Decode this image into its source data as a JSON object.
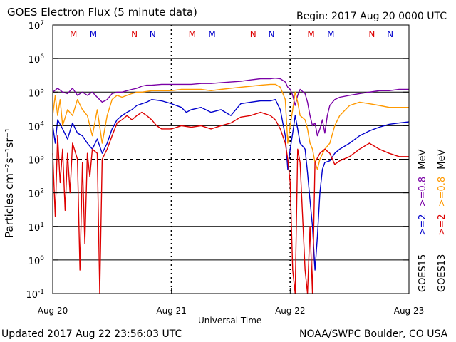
{
  "header": {
    "title": "GOES Electron Flux (5 minute data)",
    "begin": "Begin: 2017 Aug 20 0000 UTC"
  },
  "footer": {
    "updated": "Updated 2017 Aug 22 23:56:03 UTC",
    "credit": "NOAA/SWPC Boulder, CO USA"
  },
  "chart_data": {
    "type": "line",
    "title": "GOES Electron Flux (5 minute data)",
    "xlabel": "Universal Time",
    "ylabel": "Particles cm⁻²s⁻¹sr⁻¹",
    "y_scale": "log",
    "ylim": [
      0.1,
      10000000
    ],
    "xlim": [
      0,
      72
    ],
    "x_unit": "hours since 2017 Aug 20 0000 UTC",
    "x_ticks": [
      {
        "x": 0,
        "label": "Aug 20"
      },
      {
        "x": 24,
        "label": "Aug 21"
      },
      {
        "x": 48,
        "label": "Aug 22"
      },
      {
        "x": 72,
        "label": "Aug 23"
      }
    ],
    "y_ticks": [
      {
        "exp": -1,
        "label": "10-1"
      },
      {
        "exp": 0,
        "label": "100"
      },
      {
        "exp": 1,
        "label": "101"
      },
      {
        "exp": 2,
        "label": "102"
      },
      {
        "exp": 3,
        "label": "103"
      },
      {
        "exp": 4,
        "label": "104"
      },
      {
        "exp": 5,
        "label": "105"
      },
      {
        "exp": 6,
        "label": "106"
      },
      {
        "exp": 7,
        "label": "107"
      }
    ],
    "threshold_line": {
      "y": 1000,
      "style": "dashed"
    },
    "grid": true,
    "markers": [
      {
        "x": 4.2,
        "label": "M",
        "color": "#dd0000"
      },
      {
        "x": 8.2,
        "label": "M",
        "color": "#0000cc"
      },
      {
        "x": 16.5,
        "label": "N",
        "color": "#dd0000"
      },
      {
        "x": 20.2,
        "label": "N",
        "color": "#0000cc"
      },
      {
        "x": 28.2,
        "label": "M",
        "color": "#dd0000"
      },
      {
        "x": 32.2,
        "label": "M",
        "color": "#0000cc"
      },
      {
        "x": 40.5,
        "label": "N",
        "color": "#dd0000"
      },
      {
        "x": 44.2,
        "label": "N",
        "color": "#0000cc"
      },
      {
        "x": 52.2,
        "label": "M",
        "color": "#dd0000"
      },
      {
        "x": 56.2,
        "label": "M",
        "color": "#0000cc"
      },
      {
        "x": 64.5,
        "label": "N",
        "color": "#dd0000"
      },
      {
        "x": 68.2,
        "label": "N",
        "color": "#0000cc"
      }
    ],
    "legend": {
      "placement": "right",
      "groups": [
        {
          "satellite": "GOES15",
          "entries": [
            {
              "label": ">=2",
              "color": "#0000cc"
            },
            {
              "label": ">=0.8",
              "color": "#7a00a6"
            },
            {
              "unit": "MeV"
            }
          ]
        },
        {
          "satellite": "GOES13",
          "entries": [
            {
              "label": ">=2",
              "color": "#dd0000"
            },
            {
              "label": ">=0.8",
              "color": "#ff9900"
            },
            {
              "unit": "MeV"
            }
          ]
        }
      ]
    },
    "series": [
      {
        "name": "GOES15 >=0.8 MeV",
        "color": "#7a00a6",
        "points": [
          [
            0,
            100000
          ],
          [
            1,
            130000
          ],
          [
            2,
            100000
          ],
          [
            3,
            90000
          ],
          [
            4,
            130000
          ],
          [
            5,
            80000
          ],
          [
            6,
            100000
          ],
          [
            7,
            80000
          ],
          [
            8,
            100000
          ],
          [
            9,
            70000
          ],
          [
            10,
            50000
          ],
          [
            11,
            60000
          ],
          [
            12,
            90000
          ],
          [
            13,
            100000
          ],
          [
            14,
            100000
          ],
          [
            15,
            110000
          ],
          [
            16,
            120000
          ],
          [
            17,
            130000
          ],
          [
            18,
            150000
          ],
          [
            19,
            160000
          ],
          [
            20,
            160000
          ],
          [
            22,
            170000
          ],
          [
            24,
            170000
          ],
          [
            26,
            170000
          ],
          [
            28,
            170000
          ],
          [
            30,
            180000
          ],
          [
            32,
            180000
          ],
          [
            34,
            190000
          ],
          [
            36,
            200000
          ],
          [
            38,
            210000
          ],
          [
            40,
            230000
          ],
          [
            42,
            250000
          ],
          [
            44,
            250000
          ],
          [
            45,
            260000
          ],
          [
            46,
            250000
          ],
          [
            47,
            200000
          ],
          [
            47.5,
            140000
          ],
          [
            48,
            120000
          ],
          [
            48.5,
            80000
          ],
          [
            49,
            40000
          ],
          [
            49.5,
            80000
          ],
          [
            50,
            120000
          ],
          [
            51,
            90000
          ],
          [
            51.5,
            50000
          ],
          [
            52,
            20000
          ],
          [
            52.5,
            10000
          ],
          [
            53,
            12000
          ],
          [
            53.5,
            5000
          ],
          [
            54,
            8000
          ],
          [
            54.5,
            15000
          ],
          [
            55,
            6000
          ],
          [
            55.5,
            20000
          ],
          [
            56,
            40000
          ],
          [
            57,
            60000
          ],
          [
            58,
            70000
          ],
          [
            60,
            80000
          ],
          [
            62,
            90000
          ],
          [
            64,
            100000
          ],
          [
            66,
            110000
          ],
          [
            68,
            110000
          ],
          [
            70,
            120000
          ],
          [
            72,
            120000
          ]
        ]
      },
      {
        "name": "GOES13 >=0.8 MeV",
        "color": "#ff9900",
        "points": [
          [
            0,
            20000
          ],
          [
            0.5,
            80000
          ],
          [
            1,
            20000
          ],
          [
            1.5,
            60000
          ],
          [
            2,
            10000
          ],
          [
            3,
            30000
          ],
          [
            4,
            20000
          ],
          [
            5,
            60000
          ],
          [
            6,
            30000
          ],
          [
            7,
            20000
          ],
          [
            8,
            5000
          ],
          [
            9,
            30000
          ],
          [
            10,
            3000
          ],
          [
            11,
            20000
          ],
          [
            12,
            60000
          ],
          [
            13,
            80000
          ],
          [
            14,
            70000
          ],
          [
            15,
            80000
          ],
          [
            16,
            90000
          ],
          [
            17,
            100000
          ],
          [
            18,
            100000
          ],
          [
            20,
            110000
          ],
          [
            22,
            110000
          ],
          [
            24,
            110000
          ],
          [
            26,
            120000
          ],
          [
            28,
            120000
          ],
          [
            30,
            120000
          ],
          [
            32,
            110000
          ],
          [
            34,
            120000
          ],
          [
            36,
            130000
          ],
          [
            38,
            140000
          ],
          [
            40,
            150000
          ],
          [
            42,
            160000
          ],
          [
            44,
            170000
          ],
          [
            45,
            170000
          ],
          [
            46,
            140000
          ],
          [
            47,
            60000
          ],
          [
            47.5,
            3000
          ],
          [
            48,
            10000
          ],
          [
            48.5,
            30000
          ],
          [
            49,
            100000
          ],
          [
            49.5,
            50000
          ],
          [
            50,
            20000
          ],
          [
            51,
            15000
          ],
          [
            51.5,
            8000
          ],
          [
            52,
            3000
          ],
          [
            52.5,
            2000
          ],
          [
            53,
            800
          ],
          [
            53.5,
            500
          ],
          [
            54,
            1000
          ],
          [
            55,
            2000
          ],
          [
            56,
            3000
          ],
          [
            57,
            10000
          ],
          [
            58,
            20000
          ],
          [
            60,
            40000
          ],
          [
            62,
            50000
          ],
          [
            64,
            45000
          ],
          [
            66,
            40000
          ],
          [
            68,
            35000
          ],
          [
            70,
            35000
          ],
          [
            72,
            35000
          ]
        ]
      },
      {
        "name": "GOES15 >=2 MeV",
        "color": "#0000cc",
        "points": [
          [
            0,
            10000
          ],
          [
            0.5,
            3000
          ],
          [
            1,
            15000
          ],
          [
            2,
            8000
          ],
          [
            3,
            4000
          ],
          [
            4,
            12000
          ],
          [
            5,
            6000
          ],
          [
            6,
            5000
          ],
          [
            7,
            3000
          ],
          [
            8,
            2000
          ],
          [
            9,
            4000
          ],
          [
            10,
            1500
          ],
          [
            11,
            3000
          ],
          [
            12,
            8000
          ],
          [
            13,
            15000
          ],
          [
            14,
            20000
          ],
          [
            15,
            25000
          ],
          [
            16,
            30000
          ],
          [
            17,
            40000
          ],
          [
            18,
            45000
          ],
          [
            19,
            50000
          ],
          [
            20,
            60000
          ],
          [
            22,
            55000
          ],
          [
            24,
            45000
          ],
          [
            26,
            35000
          ],
          [
            27,
            25000
          ],
          [
            28,
            30000
          ],
          [
            30,
            35000
          ],
          [
            32,
            25000
          ],
          [
            34,
            30000
          ],
          [
            36,
            20000
          ],
          [
            37,
            30000
          ],
          [
            38,
            45000
          ],
          [
            40,
            50000
          ],
          [
            42,
            55000
          ],
          [
            44,
            55000
          ],
          [
            45,
            60000
          ],
          [
            46,
            30000
          ],
          [
            47,
            5000
          ],
          [
            47.5,
            500
          ],
          [
            48,
            2000
          ],
          [
            48.5,
            6000
          ],
          [
            49,
            20000
          ],
          [
            49.5,
            8000
          ],
          [
            50,
            3000
          ],
          [
            51,
            2000
          ],
          [
            51.5,
            400
          ],
          [
            52,
            60
          ],
          [
            52.5,
            10
          ],
          [
            53,
            0.5
          ],
          [
            53.5,
            5
          ],
          [
            54,
            100
          ],
          [
            54.5,
            500
          ],
          [
            55,
            800
          ],
          [
            56,
            900
          ],
          [
            57,
            1500
          ],
          [
            58,
            2000
          ],
          [
            60,
            3000
          ],
          [
            62,
            5000
          ],
          [
            64,
            7000
          ],
          [
            66,
            9000
          ],
          [
            68,
            11000
          ],
          [
            70,
            12000
          ],
          [
            72,
            13000
          ]
        ]
      },
      {
        "name": "GOES13 >=2 MeV",
        "color": "#dd0000",
        "points": [
          [
            0,
            1500
          ],
          [
            0.5,
            20
          ],
          [
            1,
            5000
          ],
          [
            1.5,
            200
          ],
          [
            2,
            2000
          ],
          [
            2.5,
            30
          ],
          [
            3,
            1500
          ],
          [
            3.5,
            100
          ],
          [
            4,
            3000
          ],
          [
            5,
            1000
          ],
          [
            5.5,
            0.5
          ],
          [
            6,
            800
          ],
          [
            6.5,
            3
          ],
          [
            7,
            1500
          ],
          [
            7.5,
            300
          ],
          [
            8,
            2000
          ],
          [
            9,
            1500
          ],
          [
            9.5,
            0.1
          ],
          [
            10,
            1000
          ],
          [
            11,
            2000
          ],
          [
            12,
            5000
          ],
          [
            13,
            12000
          ],
          [
            14,
            15000
          ],
          [
            15,
            20000
          ],
          [
            16,
            15000
          ],
          [
            17,
            20000
          ],
          [
            18,
            25000
          ],
          [
            19,
            20000
          ],
          [
            20,
            15000
          ],
          [
            21,
            10000
          ],
          [
            22,
            8000
          ],
          [
            24,
            8000
          ],
          [
            26,
            10000
          ],
          [
            28,
            9000
          ],
          [
            30,
            10000
          ],
          [
            32,
            8000
          ],
          [
            34,
            10000
          ],
          [
            36,
            12000
          ],
          [
            38,
            18000
          ],
          [
            40,
            20000
          ],
          [
            42,
            25000
          ],
          [
            44,
            20000
          ],
          [
            45,
            15000
          ],
          [
            46,
            8000
          ],
          [
            47,
            3000
          ],
          [
            47.5,
            1000
          ],
          [
            48,
            200
          ],
          [
            48.5,
            0.5
          ],
          [
            49,
            0.1
          ],
          [
            49.5,
            2000
          ],
          [
            50,
            800
          ],
          [
            51,
            0.5
          ],
          [
            51.5,
            0.1
          ],
          [
            52,
            10
          ],
          [
            52.5,
            0.1
          ],
          [
            53,
            800
          ],
          [
            54,
            1500
          ],
          [
            55,
            2000
          ],
          [
            56,
            1500
          ],
          [
            57,
            700
          ],
          [
            58,
            900
          ],
          [
            60,
            1200
          ],
          [
            62,
            2000
          ],
          [
            64,
            3000
          ],
          [
            66,
            2000
          ],
          [
            68,
            1500
          ],
          [
            70,
            1200
          ],
          [
            72,
            1200
          ]
        ]
      }
    ]
  }
}
